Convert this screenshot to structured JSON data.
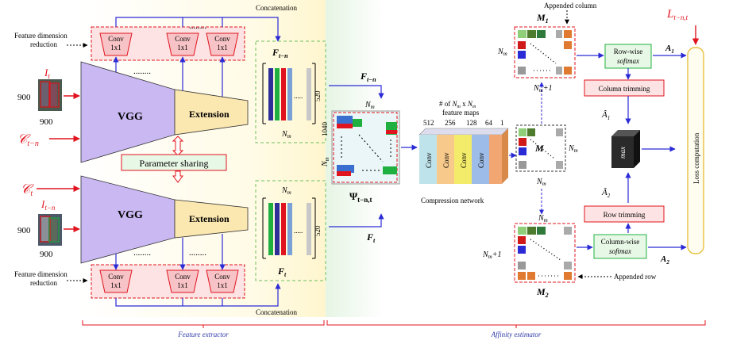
{
  "feature_extractor": {
    "concat_top": "Concatenation",
    "concat_bottom": "Concatenation",
    "fdr_top_line1": "Feature dimension",
    "fdr_top_line2": "reduction",
    "fdr_bottom_line1": "Feature dimension",
    "fdr_bottom_line2": "reduction",
    "conv_line1": "Conv",
    "conv_line2": "1x1",
    "input_top_label": "I_t",
    "input_top_w": "900",
    "input_top_h": "900",
    "input_top_c": "C_{t-n}",
    "input_bottom_label": "I_{t-n}",
    "input_bottom_w": "900",
    "input_bottom_h": "900",
    "input_bottom_c": "C_t",
    "vgg": "VGG",
    "extension": "Extension",
    "param_sharing": "Parameter sharing",
    "feat_top": "F_{t-n}",
    "feat_bottom": "F_t",
    "feat_dim": "520",
    "feat_nm": "N_m",
    "dots": "........",
    "section_label": "Feature extractor"
  },
  "affinity": {
    "f_tn": "F_{t-n}",
    "f_t": "F_t",
    "psi": "Ψ_{t-n,t}",
    "dim_1040": "1040",
    "nm": "N_m",
    "maps_line1": "# of N_m x N_m",
    "maps_line2": "feature maps",
    "channels": [
      "512",
      "256",
      "128",
      "64",
      "1"
    ],
    "conv": "Conv",
    "compression": "Compression network",
    "appended_col": "Appended column",
    "appended_row": "Appended row",
    "m1": "M_1",
    "m": "M",
    "m2": "M_2",
    "nm_plus": "N_m+1",
    "row_softmax_1": "Row-wise",
    "row_softmax_2": "softmax",
    "col_softmax_1": "Column-wise",
    "col_softmax_2": "softmax",
    "col_trim": "Column trimming",
    "row_trim": "Row trimming",
    "a1": "A_1",
    "a2": "A_2",
    "a1_hat": "Â_1",
    "a2_hat": "Â_2",
    "max": "max",
    "loss": "Loss computation",
    "loss_label": "L_{t-n,t}",
    "section_label": "Affinity estimator"
  },
  "colors": {
    "vgg": "#c9b8f2",
    "extension": "#fbe7b0",
    "red": "#e0141e",
    "blue": "#2b2bd6",
    "green_box": "#e8f8e6",
    "pink_box": "#fde3e3"
  }
}
